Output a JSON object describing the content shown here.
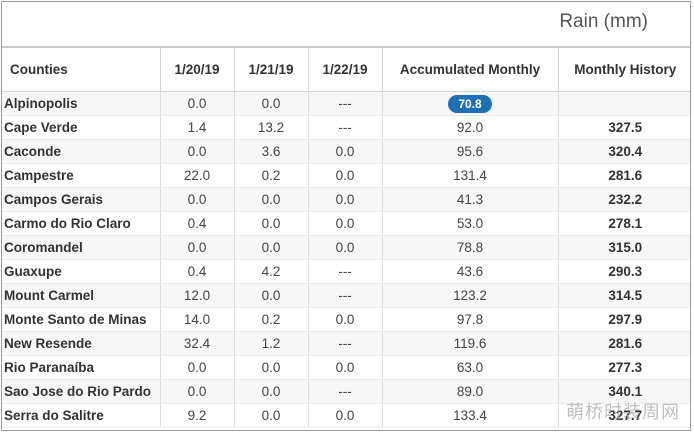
{
  "header": {
    "rain_title": "Rain (mm)"
  },
  "table": {
    "columns": [
      "Counties",
      "1/20/19",
      "1/21/19",
      "1/22/19",
      "Accumulated Monthly",
      "Monthly History"
    ],
    "rows": [
      {
        "county": "Alpinopolis",
        "d1": "0.0",
        "d2": "0.0",
        "d3": "---",
        "acc": "70.8",
        "hist": ""
      },
      {
        "county": "Cape Verde",
        "d1": "1.4",
        "d2": "13.2",
        "d3": "---",
        "acc": "92.0",
        "hist": "327.5"
      },
      {
        "county": "Caconde",
        "d1": "0.0",
        "d2": "3.6",
        "d3": "0.0",
        "acc": "95.6",
        "hist": "320.4"
      },
      {
        "county": "Campestre",
        "d1": "22.0",
        "d2": "0.2",
        "d3": "0.0",
        "acc": "131.4",
        "hist": "281.6"
      },
      {
        "county": "Campos Gerais",
        "d1": "0.0",
        "d2": "0.0",
        "d3": "0.0",
        "acc": "41.3",
        "hist": "232.2"
      },
      {
        "county": "Carmo do Rio Claro",
        "d1": "0.4",
        "d2": "0.0",
        "d3": "0.0",
        "acc": "53.0",
        "hist": "278.1"
      },
      {
        "county": "Coromandel",
        "d1": "0.0",
        "d2": "0.0",
        "d3": "0.0",
        "acc": "78.8",
        "hist": "315.0"
      },
      {
        "county": "Guaxupe",
        "d1": "0.4",
        "d2": "4.2",
        "d3": "---",
        "acc": "43.6",
        "hist": "290.3"
      },
      {
        "county": "Mount Carmel",
        "d1": "12.0",
        "d2": "0.0",
        "d3": "---",
        "acc": "123.2",
        "hist": "314.5"
      },
      {
        "county": "Monte Santo de Minas",
        "d1": "14.0",
        "d2": "0.2",
        "d3": "0.0",
        "acc": "97.8",
        "hist": "297.9"
      },
      {
        "county": "New Resende",
        "d1": "32.4",
        "d2": "1.2",
        "d3": "---",
        "acc": "119.6",
        "hist": "281.6"
      },
      {
        "county": "Rio Paranaíba",
        "d1": "0.0",
        "d2": "0.0",
        "d3": "0.0",
        "acc": "63.0",
        "hist": "277.3"
      },
      {
        "county": "Sao Jose do Rio Pardo",
        "d1": "0.0",
        "d2": "0.0",
        "d3": "---",
        "acc": "89.0",
        "hist": "340.1"
      },
      {
        "county": "Serra do Salitre",
        "d1": "9.2",
        "d2": "0.0",
        "d3": "0.0",
        "acc": "133.4",
        "hist": "327.7"
      }
    ]
  },
  "watermark": "萌桥时装周网",
  "colors": {
    "highlight_pill": "#1f6fb3"
  }
}
